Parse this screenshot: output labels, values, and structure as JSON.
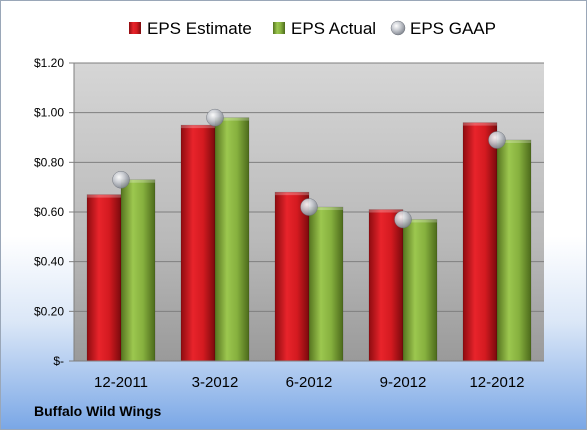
{
  "chart_data": {
    "type": "bar",
    "categories": [
      "12-2011",
      "3-2012",
      "6-2012",
      "9-2012",
      "12-2012"
    ],
    "series": [
      {
        "name": "EPS Estimate",
        "kind": "bar",
        "color": "#c8161d",
        "values": [
          0.67,
          0.95,
          0.68,
          0.61,
          0.96
        ]
      },
      {
        "name": "EPS Actual",
        "kind": "bar",
        "color": "#7aa23a",
        "values": [
          0.73,
          0.98,
          0.62,
          0.57,
          0.89
        ]
      },
      {
        "name": "EPS GAAP",
        "kind": "marker",
        "color": "#b8bcc4",
        "values": [
          0.73,
          0.98,
          0.62,
          0.57,
          0.89
        ]
      }
    ],
    "ylim": [
      0,
      1.2
    ],
    "yticks": [
      {
        "value": 1.2,
        "label": "$1.20"
      },
      {
        "value": 1.0,
        "label": "$1.00"
      },
      {
        "value": 0.8,
        "label": "$0.80"
      },
      {
        "value": 0.6,
        "label": "$0.60"
      },
      {
        "value": 0.4,
        "label": "$0.40"
      },
      {
        "value": 0.2,
        "label": "$0.20"
      },
      {
        "value": 0,
        "label": "$-"
      }
    ],
    "grid": true,
    "legend_position": "top"
  },
  "company": "Buffalo Wild Wings"
}
